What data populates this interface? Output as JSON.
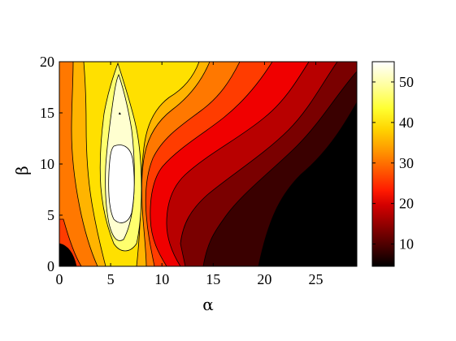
{
  "chart_data": {
    "type": "heatmap",
    "subtype": "filled-contour",
    "title": "",
    "xlabel": "α",
    "ylabel": "β",
    "xlim": [
      0,
      29
    ],
    "ylim": [
      0,
      20
    ],
    "x_ticks": [
      "0",
      "5",
      "10",
      "15",
      "20",
      "25"
    ],
    "y_ticks": [
      "0",
      "5",
      "10",
      "15",
      "20"
    ],
    "colormap": "hot",
    "colorbar": {
      "range": [
        4.5,
        55
      ],
      "ticks": [
        "10",
        "20",
        "30",
        "40",
        "50"
      ],
      "placement": "right"
    },
    "contour_levels": [
      5,
      10,
      15,
      20,
      25,
      30,
      35,
      40,
      45,
      50
    ],
    "features": [
      {
        "description": "peak region",
        "alpha": 6,
        "beta": 8,
        "value": 55
      },
      {
        "description": "minimum corner",
        "alpha": 29,
        "beta": 0,
        "value": 4.5
      },
      {
        "description": "local minimum",
        "alpha": 0.5,
        "beta": 0.5,
        "value": 6
      }
    ]
  }
}
